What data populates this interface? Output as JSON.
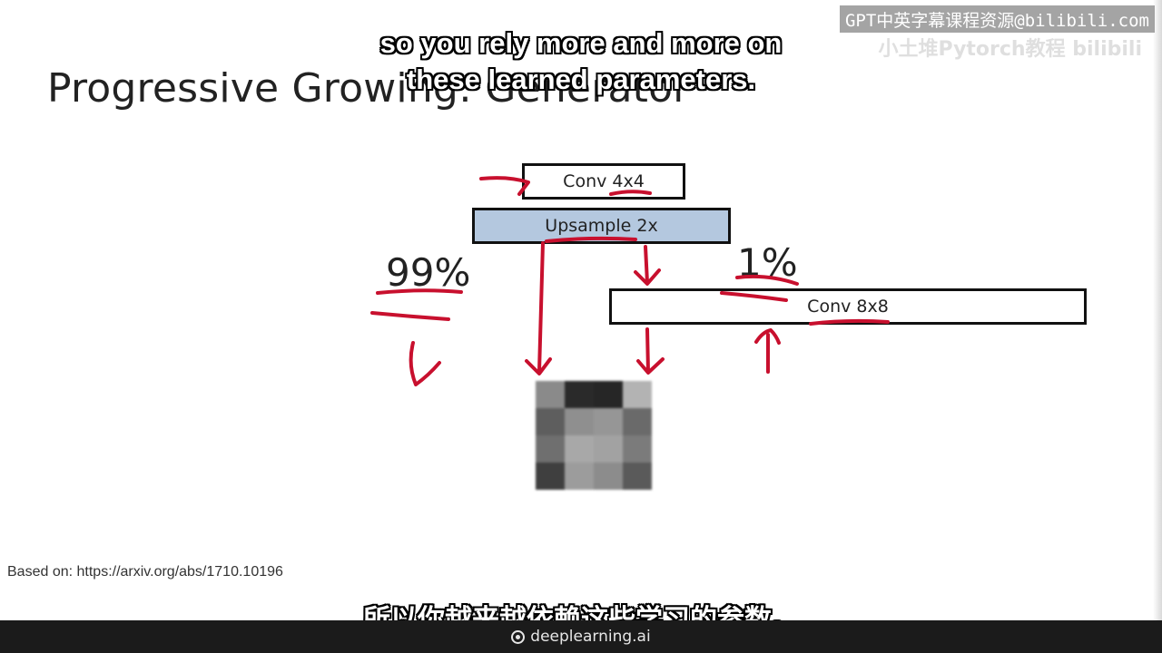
{
  "slide": {
    "title": "Progressive Growing: Generator",
    "boxes": {
      "conv4": "Conv 4x4",
      "upsample": "Upsample 2x",
      "conv8": "Conv 8x8"
    },
    "weights": {
      "left": "99%",
      "right": "1%"
    },
    "source": "Based on: https://arxiv.org/abs/1710.10196",
    "colors": {
      "upsample_fill": "#b4c8df",
      "annotation_ink": "#c8102e"
    },
    "output_image_pixels": [
      [
        "#8a8a8a",
        "#2a2a2a",
        "#262626",
        "#b3b3b3"
      ],
      [
        "#5e5e5e",
        "#8f8f8f",
        "#969696",
        "#6a6a6a"
      ],
      [
        "#6f6f6f",
        "#a8a8a8",
        "#a2a2a2",
        "#7b7b7b"
      ],
      [
        "#3f3f3f",
        "#9c9c9c",
        "#8c8c8c",
        "#5a5a5a"
      ]
    ]
  },
  "subtitles": {
    "en_line1": "so you rely more and more on",
    "en_line2": "these learned parameters.",
    "zh": "所以你越来越依赖这些学习的参数。"
  },
  "watermark": {
    "text": "GPT中英字幕课程资源@bilibili.com",
    "faint_text": "小土堆Pytorch教程 bilibili"
  },
  "brand": {
    "name": "deeplearning.ai",
    "icon": "deeplearning-logo-icon"
  }
}
